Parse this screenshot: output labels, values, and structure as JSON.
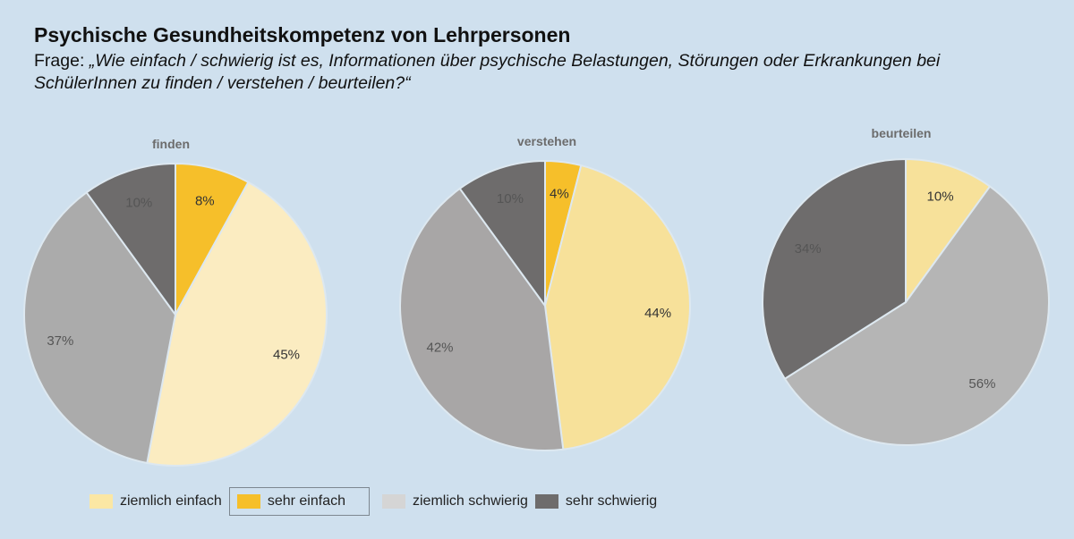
{
  "header": {
    "title": "Psychische Gesundheitskompetenz von Lehrpersonen",
    "question_prefix": "Frage: ",
    "question_text": "„Wie einfach / schwierig ist es, Informationen über psychische Belastungen, Störungen oder Erkrankungen bei SchülerInnen zu finden / verstehen / beurteilen?“"
  },
  "chart_data": [
    {
      "type": "pie",
      "title": "finden",
      "labels": [
        "sehr einfach",
        "ziemlich einfach",
        "ziemlich schwierig",
        "sehr schwierig"
      ],
      "values": [
        8,
        45,
        37,
        10
      ],
      "colors": [
        "#f6bf2a",
        "#fbecc1",
        "#ababab",
        "#6e6c6c"
      ],
      "value_labels": [
        "8%",
        "45%",
        "37%",
        "10%"
      ]
    },
    {
      "type": "pie",
      "title": "verstehen",
      "labels": [
        "sehr einfach",
        "ziemlich einfach",
        "ziemlich schwierig",
        "sehr schwierig"
      ],
      "values": [
        4,
        44,
        42,
        10
      ],
      "colors": [
        "#f6bf2a",
        "#f7e19a",
        "#a8a6a6",
        "#6e6c6c"
      ],
      "value_labels": [
        "4%",
        "44%",
        "42%",
        "10%"
      ]
    },
    {
      "type": "pie",
      "title": "beurteilen",
      "labels": [
        "ziemlich einfach",
        "ziemlich schwierig",
        "sehr schwierig"
      ],
      "values": [
        10,
        56,
        34
      ],
      "colors": [
        "#f7e19a",
        "#b5b5b5",
        "#6e6c6c"
      ],
      "value_labels": [
        "10%",
        "56%",
        "34%"
      ]
    }
  ],
  "legend": [
    {
      "label": "ziemlich einfach",
      "color": "#fbe7a4"
    },
    {
      "label": "sehr  einfach",
      "color": "#f6bf2a"
    },
    {
      "label": "ziemlich schwierig",
      "color": "#d5d5d5"
    },
    {
      "label": "sehr schwierig",
      "color": "#6e6c6c"
    }
  ]
}
